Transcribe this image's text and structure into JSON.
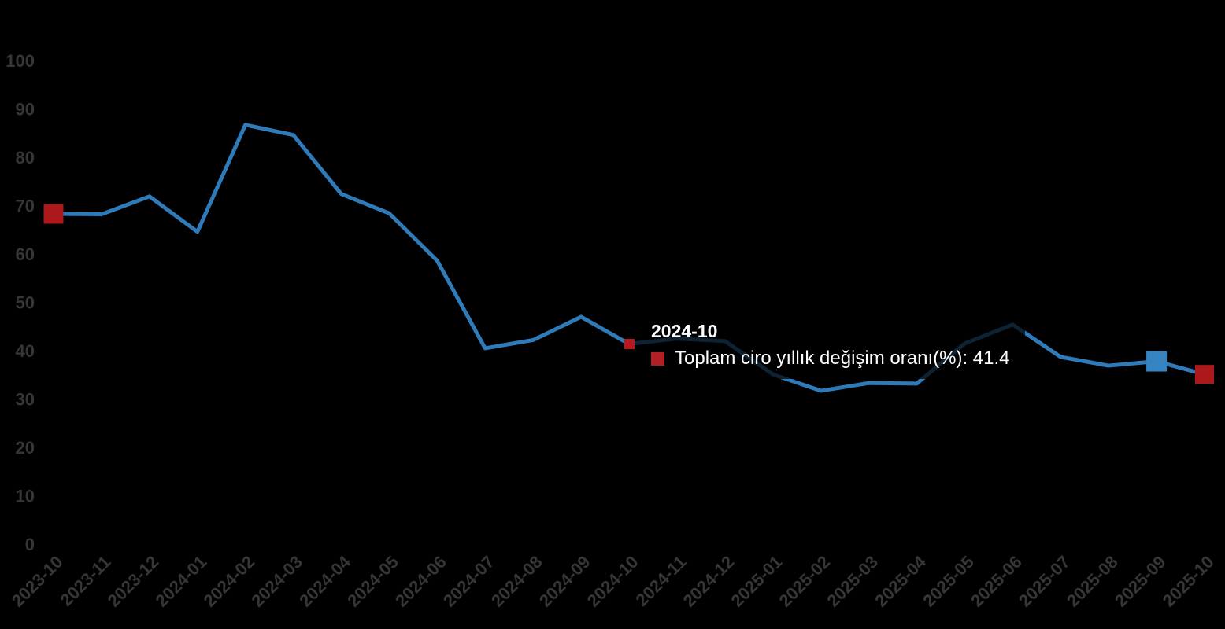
{
  "page": {
    "background_color": "#000000"
  },
  "chart_data": {
    "type": "line",
    "title": "",
    "categories": [
      "2023-10",
      "2023-11",
      "2023-12",
      "2024-01",
      "2024-02",
      "2024-03",
      "2024-04",
      "2024-05",
      "2024-06",
      "2024-07",
      "2024-08",
      "2024-09",
      "2024-10",
      "2024-11",
      "2024-12",
      "2025-01",
      "2025-02",
      "2025-03",
      "2025-04",
      "2025-05",
      "2025-06",
      "2025-07",
      "2025-08",
      "2025-09",
      "2025-10"
    ],
    "series": [
      {
        "name": "Toplam ciro yıllık değişim oranı(%)",
        "color": "#2f7ab8",
        "values": [
          68.3,
          68.2,
          71.9,
          64.6,
          86.7,
          84.6,
          72.4,
          68.4,
          58.6,
          40.5,
          42.2,
          47.0,
          41.4,
          42.5,
          42.0,
          35.1,
          31.7,
          33.3,
          33.2,
          41.5,
          45.4,
          38.7,
          36.9,
          37.8,
          35.1
        ]
      }
    ],
    "xlabel": "",
    "ylabel": "",
    "ylim": [
      0,
      100
    ],
    "ytick_step": 10,
    "yticks": [
      0,
      10,
      20,
      30,
      40,
      50,
      60,
      70,
      80,
      90,
      100
    ],
    "grid": false,
    "legend": "none",
    "axis_label_color": "#363636",
    "x_label_rotation": -45,
    "markers": [
      {
        "index": 0,
        "color": "#ad181c",
        "size": 25,
        "category": "2023-10"
      },
      {
        "index": 23,
        "color": "#3583c0",
        "size": 26,
        "category": "2025-09"
      },
      {
        "index": 24,
        "color": "#ad181c",
        "size": 24,
        "category": "2025-10"
      }
    ]
  },
  "tooltip": {
    "title": "2024-10",
    "series_name": "Toplam ciro yıllık değişim oranı(%)",
    "value": 41.4,
    "text": "Toplam ciro yıllık değişim oranı(%): 41.4",
    "swatch_color": "#b22025",
    "point_index": 12,
    "point_color": "#b8191f",
    "text_color": "#ffffff",
    "background": "rgba(0,0,0,0.72)"
  }
}
